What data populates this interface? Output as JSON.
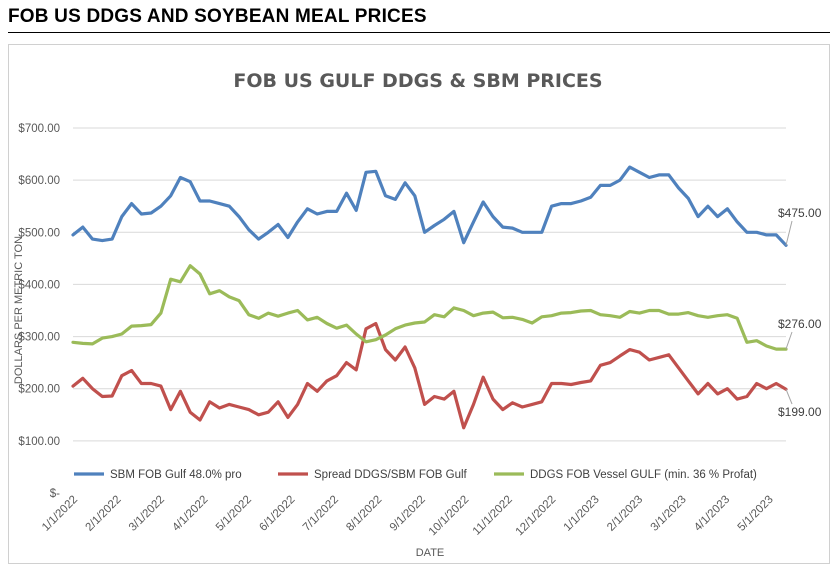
{
  "page": {
    "heading": "FOB US DDGS AND SOYBEAN MEAL PRICES"
  },
  "chart_data": {
    "type": "line",
    "title": "FOB US GULF DDGS & SBM PRICES",
    "xlabel": "DATE",
    "ylabel": "DOLLARS PER METRIC TON",
    "ylim": [
      0,
      700
    ],
    "grid": true,
    "legend_position": "bottom",
    "yticks": [
      {
        "value": 0,
        "label": "$-"
      },
      {
        "value": 100,
        "label": "$100.00"
      },
      {
        "value": 200,
        "label": "$200.00"
      },
      {
        "value": 300,
        "label": "$300.00"
      },
      {
        "value": 400,
        "label": "$400.00"
      },
      {
        "value": 500,
        "label": "$500.00"
      },
      {
        "value": 600,
        "label": "$600.00"
      },
      {
        "value": 700,
        "label": "$700.00"
      }
    ],
    "xticks": [
      "1/1/2022",
      "2/1/2022",
      "3/1/2022",
      "4/1/2022",
      "5/1/2022",
      "6/1/2022",
      "7/1/2022",
      "8/1/2022",
      "9/1/2022",
      "10/1/2022",
      "11/1/2022",
      "12/1/2022",
      "1/1/2023",
      "2/1/2023",
      "3/1/2023",
      "4/1/2023",
      "5/1/2023"
    ],
    "series": [
      {
        "name": "SBM FOB Gulf 48.0% pro",
        "color": "#4f81bd",
        "end_label": "$475.00",
        "values": [
          495,
          510,
          487,
          484,
          487,
          530,
          555,
          535,
          537,
          550,
          570,
          605,
          597,
          560,
          560,
          555,
          550,
          530,
          505,
          487,
          500,
          515,
          490,
          520,
          545,
          535,
          540,
          540,
          575,
          542,
          615,
          617,
          570,
          563,
          595,
          570,
          500,
          513,
          525,
          540,
          480,
          520,
          558,
          530,
          510,
          508,
          500,
          500,
          500,
          550,
          555,
          555,
          560,
          567,
          590,
          590,
          600,
          625,
          615,
          605,
          610,
          610,
          585,
          565,
          530,
          550,
          530,
          545,
          520,
          500,
          500,
          495,
          495,
          475
        ]
      },
      {
        "name": "Spread DDGS/SBM FOB Gulf",
        "color": "#c0504d",
        "end_label": "$199.00",
        "values": [
          205,
          220,
          200,
          185,
          186,
          225,
          235,
          210,
          210,
          205,
          160,
          195,
          155,
          140,
          175,
          163,
          170,
          165,
          160,
          150,
          155,
          175,
          145,
          170,
          210,
          195,
          215,
          225,
          250,
          236,
          315,
          325,
          275,
          255,
          280,
          240,
          170,
          185,
          180,
          195,
          125,
          170,
          222,
          180,
          160,
          173,
          165,
          170,
          175,
          210,
          210,
          208,
          212,
          215,
          245,
          250,
          263,
          275,
          270,
          255,
          260,
          265,
          240,
          215,
          190,
          210,
          190,
          200,
          180,
          185,
          210,
          200,
          210,
          199
        ]
      },
      {
        "name": "DDGS FOB Vessel GULF  (min. 36 % Profat)",
        "color": "#9bbb59",
        "end_label": "$276.00",
        "values": [
          289,
          287,
          286,
          297,
          300,
          305,
          320,
          321,
          323,
          345,
          410,
          405,
          436,
          420,
          382,
          388,
          376,
          369,
          342,
          335,
          345,
          339,
          345,
          350,
          332,
          337,
          325,
          316,
          322,
          305,
          290,
          294,
          303,
          315,
          322,
          326,
          328,
          342,
          338,
          355,
          350,
          340,
          345,
          347,
          336,
          337,
          333,
          326,
          338,
          340,
          345,
          346,
          349,
          350,
          342,
          340,
          337,
          348,
          345,
          350,
          350,
          343,
          343,
          346,
          340,
          337,
          340,
          342,
          335,
          289,
          292,
          282,
          276,
          276
        ]
      }
    ]
  }
}
